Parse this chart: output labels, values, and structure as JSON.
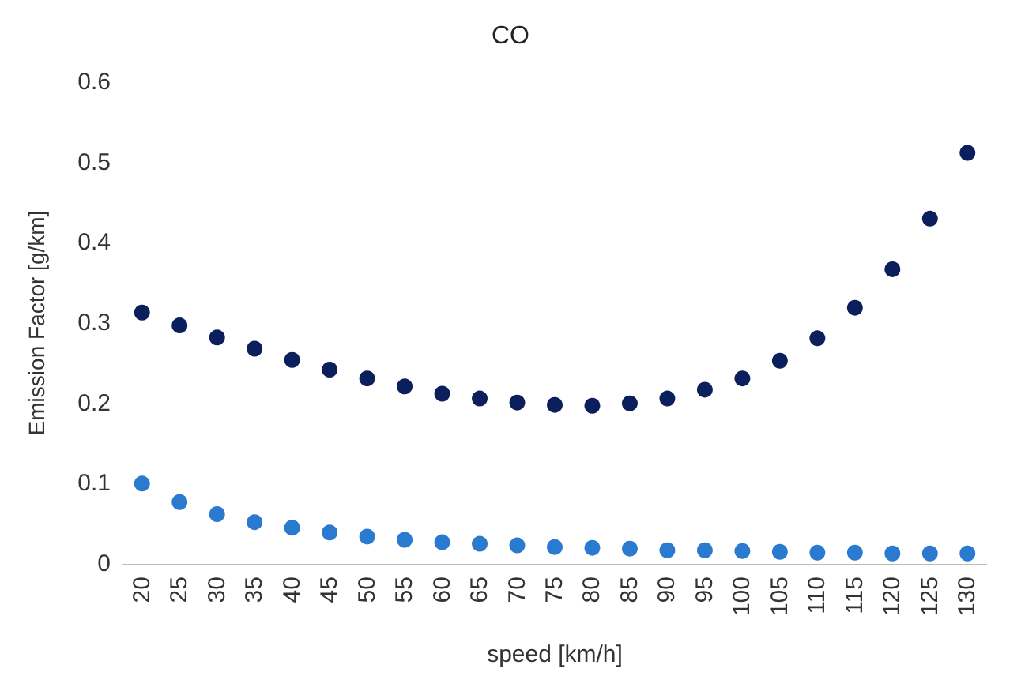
{
  "chart_data": {
    "type": "scatter",
    "title": "CO",
    "xlabel": "speed [km/h]",
    "ylabel": "Emission Factor [g/km]",
    "categories": [
      "20",
      "25",
      "30",
      "35",
      "40",
      "45",
      "50",
      "55",
      "60",
      "65",
      "70",
      "75",
      "80",
      "85",
      "90",
      "95",
      "100",
      "105",
      "110",
      "115",
      "120",
      "125",
      "130"
    ],
    "series": [
      {
        "color": "#0b1f5c",
        "values": [
          0.313,
          0.297,
          0.282,
          0.268,
          0.254,
          0.242,
          0.231,
          0.221,
          0.212,
          0.206,
          0.201,
          0.198,
          0.197,
          0.2,
          0.206,
          0.217,
          0.231,
          0.253,
          0.281,
          0.319,
          0.367,
          0.43,
          0.512
        ]
      },
      {
        "color": "#2a7ad0",
        "values": [
          0.1,
          0.077,
          0.062,
          0.052,
          0.045,
          0.039,
          0.034,
          0.03,
          0.027,
          0.025,
          0.023,
          0.021,
          0.02,
          0.019,
          0.017,
          0.017,
          0.016,
          0.015,
          0.014,
          0.014,
          0.013,
          0.013,
          0.013
        ]
      }
    ],
    "ylim": [
      0,
      0.6
    ],
    "yticks": [
      0,
      0.1,
      0.2,
      0.3,
      0.4,
      0.5,
      0.6
    ],
    "grid": false,
    "marker": "circle"
  }
}
